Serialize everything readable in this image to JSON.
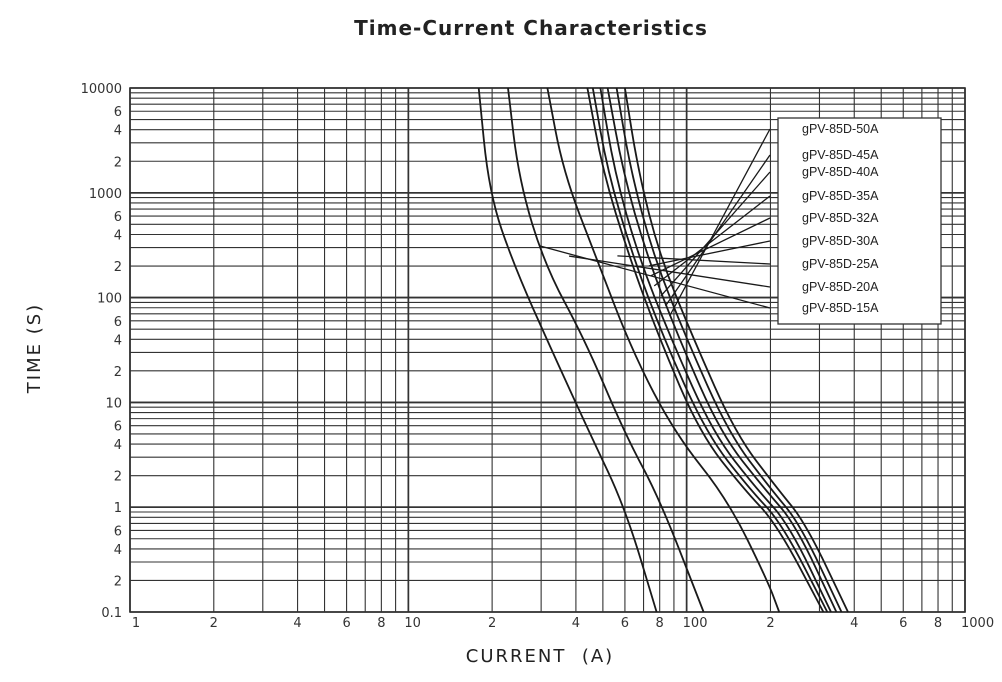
{
  "chart_data": {
    "type": "line",
    "title": "Time-Current Characteristics",
    "xlabel": "CURRENT  (A)",
    "ylabel": "TIME (S)",
    "x_scale": "log",
    "y_scale": "log",
    "xlim": [
      1,
      1000
    ],
    "ylim": [
      0.1,
      10000
    ],
    "grid": true,
    "legend_position": "top-right",
    "x_tick_labels": [
      {
        "v": 1,
        "t": "1"
      },
      {
        "v": 2,
        "t": "2"
      },
      {
        "v": 4,
        "t": "4"
      },
      {
        "v": 6,
        "t": "6"
      },
      {
        "v": 8,
        "t": "8"
      },
      {
        "v": 10,
        "t": "10"
      },
      {
        "v": 20,
        "t": "2"
      },
      {
        "v": 40,
        "t": "4"
      },
      {
        "v": 60,
        "t": "6"
      },
      {
        "v": 80,
        "t": "8"
      },
      {
        "v": 100,
        "t": "100"
      },
      {
        "v": 200,
        "t": "2"
      },
      {
        "v": 400,
        "t": "4"
      },
      {
        "v": 600,
        "t": "6"
      },
      {
        "v": 800,
        "t": "8"
      },
      {
        "v": 1000,
        "t": "1000"
      }
    ],
    "y_tick_labels": [
      {
        "v": 0.1,
        "t": "0.1"
      },
      {
        "v": 0.2,
        "t": "2"
      },
      {
        "v": 0.4,
        "t": "4"
      },
      {
        "v": 0.6,
        "t": "6"
      },
      {
        "v": 1,
        "t": "1"
      },
      {
        "v": 2,
        "t": "2"
      },
      {
        "v": 4,
        "t": "4"
      },
      {
        "v": 6,
        "t": "6"
      },
      {
        "v": 10,
        "t": "10"
      },
      {
        "v": 20,
        "t": "2"
      },
      {
        "v": 40,
        "t": "4"
      },
      {
        "v": 60,
        "t": "6"
      },
      {
        "v": 100,
        "t": "100"
      },
      {
        "v": 200,
        "t": "2"
      },
      {
        "v": 400,
        "t": "4"
      },
      {
        "v": 600,
        "t": "6"
      },
      {
        "v": 1000,
        "t": "1000"
      },
      {
        "v": 2000,
        "t": "2"
      },
      {
        "v": 4000,
        "t": "4"
      },
      {
        "v": 6000,
        "t": "6"
      },
      {
        "v": 10000,
        "t": "10000"
      }
    ],
    "series": [
      {
        "name": "gPV-85D-15A",
        "points": [
          [
            17.9,
            10000
          ],
          [
            19.5,
            1000
          ],
          [
            24,
            200
          ],
          [
            33,
            30
          ],
          [
            45,
            5
          ],
          [
            60,
            1
          ],
          [
            78,
            0.1
          ]
        ]
      },
      {
        "name": "gPV-85D-20A",
        "points": [
          [
            22.8,
            10000
          ],
          [
            25,
            1300
          ],
          [
            31,
            200
          ],
          [
            43,
            40
          ],
          [
            60,
            5
          ],
          [
            80,
            1.2
          ],
          [
            115,
            0.1
          ]
        ]
      },
      {
        "name": "gPV-85D-25A",
        "points": [
          [
            31.6,
            10000
          ],
          [
            36,
            1600
          ],
          [
            47,
            250
          ],
          [
            64,
            30
          ],
          [
            91,
            5
          ],
          [
            140,
            1.2
          ],
          [
            195,
            0.2
          ],
          [
            215,
            0.1
          ]
        ]
      },
      {
        "name": "gPV-85D-30A",
        "points": [
          [
            44,
            10000
          ],
          [
            50,
            1600
          ],
          [
            62,
            250
          ],
          [
            80,
            40
          ],
          [
            112,
            5
          ],
          [
            160,
            1.5
          ],
          [
            210,
            0.7
          ],
          [
            310,
            0.1
          ]
        ]
      },
      {
        "name": "gPV-85D-32A",
        "points": [
          [
            46,
            10000
          ],
          [
            52,
            1600
          ],
          [
            64,
            250
          ],
          [
            83,
            40
          ],
          [
            118,
            5
          ],
          [
            168,
            1.5
          ],
          [
            220,
            0.7
          ],
          [
            320,
            0.1
          ]
        ]
      },
      {
        "name": "gPV-85D-35A",
        "points": [
          [
            49,
            10000
          ],
          [
            55,
            1600
          ],
          [
            67,
            250
          ],
          [
            88,
            40
          ],
          [
            125,
            5
          ],
          [
            178,
            1.5
          ],
          [
            232,
            0.7
          ],
          [
            330,
            0.1
          ]
        ]
      },
      {
        "name": "gPV-85D-40A",
        "points": [
          [
            52,
            10000
          ],
          [
            59,
            1600
          ],
          [
            72,
            250
          ],
          [
            94,
            40
          ],
          [
            133,
            5
          ],
          [
            190,
            1.5
          ],
          [
            245,
            0.7
          ],
          [
            345,
            0.1
          ]
        ]
      },
      {
        "name": "gPV-85D-45A",
        "points": [
          [
            56,
            10000
          ],
          [
            63,
            1600
          ],
          [
            76,
            250
          ],
          [
            100,
            40
          ],
          [
            142,
            5
          ],
          [
            200,
            1.5
          ],
          [
            255,
            0.7
          ],
          [
            360,
            0.1
          ]
        ]
      },
      {
        "name": "gPV-85D-50A",
        "points": [
          [
            60,
            10000
          ],
          [
            67,
            1600
          ],
          [
            80,
            250
          ],
          [
            106,
            40
          ],
          [
            150,
            5
          ],
          [
            212,
            1.5
          ],
          [
            268,
            0.7
          ],
          [
            380,
            0.1
          ]
        ]
      }
    ]
  }
}
